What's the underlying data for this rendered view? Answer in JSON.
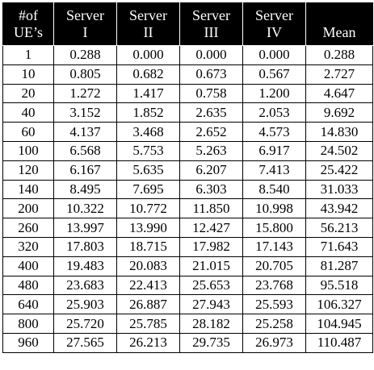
{
  "table": {
    "headers": [
      {
        "line1": "#of",
        "line2": "UE’s"
      },
      {
        "line1": "Server",
        "line2": "I"
      },
      {
        "line1": "Server",
        "line2": "II"
      },
      {
        "line1": "Server",
        "line2": "III"
      },
      {
        "line1": "Server",
        "line2": "IV"
      },
      {
        "line1": "Mean",
        "line2": ""
      }
    ],
    "rows": [
      [
        "1",
        "0.288",
        "0.000",
        "0.000",
        "0.000",
        "0.288"
      ],
      [
        "10",
        "0.805",
        "0.682",
        "0.673",
        "0.567",
        "2.727"
      ],
      [
        "20",
        "1.272",
        "1.417",
        "0.758",
        "1.200",
        "4.647"
      ],
      [
        "40",
        "3.152",
        "1.852",
        "2.635",
        "2.053",
        "9.692"
      ],
      [
        "60",
        "4.137",
        "3.468",
        "2.652",
        "4.573",
        "14.830"
      ],
      [
        "100",
        "6.568",
        "5.753",
        "5.263",
        "6.917",
        "24.502"
      ],
      [
        "120",
        "6.167",
        "5.635",
        "6.207",
        "7.413",
        "25.422"
      ],
      [
        "140",
        "8.495",
        "7.695",
        "6.303",
        "8.540",
        "31.033"
      ],
      [
        "200",
        "10.322",
        "10.772",
        "11.850",
        "10.998",
        "43.942"
      ],
      [
        "260",
        "13.997",
        "13.990",
        "12.427",
        "15.800",
        "56.213"
      ],
      [
        "320",
        "17.803",
        "18.715",
        "17.982",
        "17.143",
        "71.643"
      ],
      [
        "400",
        "19.483",
        "20.083",
        "21.015",
        "20.705",
        "81.287"
      ],
      [
        "480",
        "23.683",
        "22.413",
        "25.653",
        "23.768",
        "95.518"
      ],
      [
        "640",
        "25.903",
        "26.887",
        "27.943",
        "25.593",
        "106.327"
      ],
      [
        "800",
        "25.720",
        "25.785",
        "28.182",
        "25.258",
        "104.945"
      ],
      [
        "960",
        "27.565",
        "26.213",
        "29.735",
        "26.973",
        "110.487"
      ]
    ]
  }
}
